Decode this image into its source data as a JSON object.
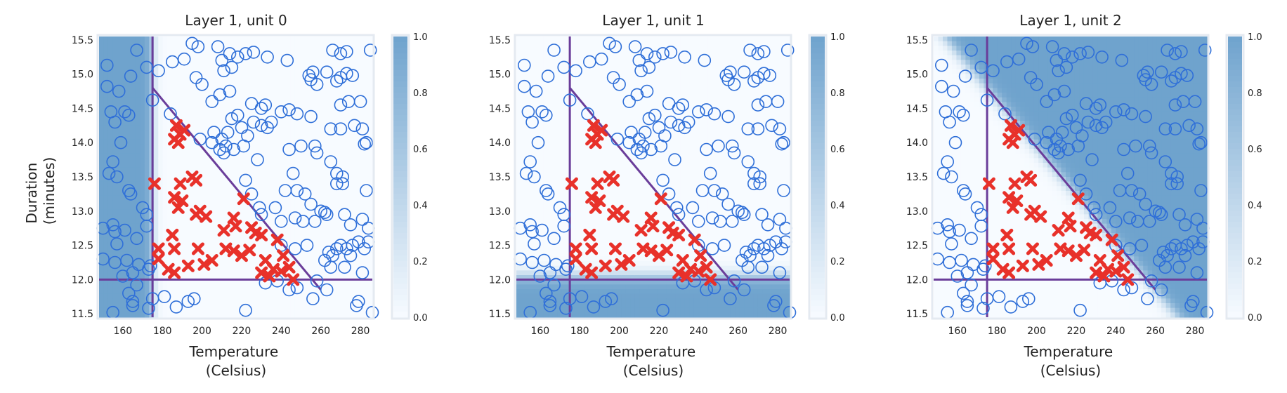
{
  "figure": {
    "xlabel_lines": [
      "Temperature",
      "(Celsius)"
    ],
    "ylabel_lines": [
      "Duration",
      "(minutes)"
    ],
    "colors": {
      "cmap_low": "#f7fbff",
      "cmap_high": "#6fa3cd",
      "circle": "#2f6fd8",
      "cross": "#e8312a",
      "boundary": "#6a3d9a",
      "frame": "#e4eaf1"
    },
    "icons": {
      "positive_marker": "cross-icon",
      "negative_marker": "circle-icon"
    }
  },
  "chart_data": [
    {
      "type": "heatmap",
      "title": "Layer 1, unit 0",
      "xlim": [
        148,
        286
      ],
      "ylim": [
        11.45,
        15.55
      ],
      "xticks": [
        160,
        180,
        200,
        220,
        240,
        260,
        280
      ],
      "yticks": [
        11.5,
        12.0,
        12.5,
        13.0,
        13.5,
        14.0,
        14.5,
        15.0,
        15.5
      ],
      "colorbar": {
        "ticks": [
          0.0,
          0.2,
          0.4,
          0.6,
          0.8,
          1.0
        ],
        "range": [
          0,
          1
        ]
      },
      "activation": {
        "rule": "temperature_below",
        "threshold": 175,
        "steepness": 0.8
      },
      "lines": [
        {
          "from": [
            148,
            12.0
          ],
          "to": [
            286,
            12.0
          ]
        },
        {
          "from": [
            175,
            11.45
          ],
          "to": [
            175,
            15.55
          ]
        },
        {
          "from": [
            175,
            14.8
          ],
          "to": [
            260,
            11.85
          ]
        }
      ]
    },
    {
      "type": "heatmap",
      "title": "Layer 1, unit 1",
      "xlim": [
        148,
        286
      ],
      "ylim": [
        11.45,
        15.55
      ],
      "xticks": [
        160,
        180,
        200,
        220,
        240,
        260,
        280
      ],
      "yticks": [
        11.5,
        12.0,
        12.5,
        13.0,
        13.5,
        14.0,
        14.5,
        15.0,
        15.5
      ],
      "colorbar": {
        "ticks": [
          0.0,
          0.2,
          0.4,
          0.6,
          0.8,
          1.0
        ],
        "range": [
          0,
          1
        ]
      },
      "activation": {
        "rule": "duration_below",
        "threshold": 12.05,
        "steepness": 18
      },
      "lines": [
        {
          "from": [
            148,
            12.0
          ],
          "to": [
            286,
            12.0
          ]
        },
        {
          "from": [
            175,
            11.45
          ],
          "to": [
            175,
            15.55
          ]
        },
        {
          "from": [
            175,
            14.8
          ],
          "to": [
            260,
            11.85
          ]
        }
      ]
    },
    {
      "type": "heatmap",
      "title": "Layer 1, unit 2",
      "xlim": [
        148,
        286
      ],
      "ylim": [
        11.45,
        15.55
      ],
      "xticks": [
        160,
        180,
        200,
        220,
        240,
        260,
        280
      ],
      "yticks": [
        11.5,
        12.0,
        12.5,
        13.0,
        13.5,
        14.0,
        14.5,
        15.0,
        15.5
      ],
      "colorbar": {
        "ticks": [
          0.0,
          0.2,
          0.4,
          0.6,
          0.8,
          1.0
        ],
        "range": [
          0,
          1
        ]
      },
      "activation": {
        "rule": "above_diagonal",
        "line_from": [
          175,
          14.8
        ],
        "line_to": [
          260,
          11.85
        ],
        "steepness": 0.45
      },
      "lines": [
        {
          "from": [
            148,
            12.0
          ],
          "to": [
            286,
            12.0
          ]
        },
        {
          "from": [
            175,
            11.45
          ],
          "to": [
            175,
            15.55
          ]
        },
        {
          "from": [
            175,
            14.8
          ],
          "to": [
            260,
            11.85
          ]
        }
      ]
    }
  ],
  "points": {
    "crosses": [
      [
        187,
        14.25
      ],
      [
        189,
        14.12
      ],
      [
        186,
        14.05
      ],
      [
        191,
        14.18
      ],
      [
        188,
        14.0
      ],
      [
        176,
        13.4
      ],
      [
        189,
        13.4
      ],
      [
        195,
        13.5
      ],
      [
        197,
        13.45
      ],
      [
        186,
        13.2
      ],
      [
        190,
        13.15
      ],
      [
        188,
        13.05
      ],
      [
        199,
        13.0
      ],
      [
        202,
        12.92
      ],
      [
        221,
        13.18
      ],
      [
        197,
        12.95
      ],
      [
        216,
        12.9
      ],
      [
        217,
        12.78
      ],
      [
        211,
        12.72
      ],
      [
        225,
        12.76
      ],
      [
        227,
        12.68
      ],
      [
        230,
        12.65
      ],
      [
        238,
        12.58
      ],
      [
        185,
        12.65
      ],
      [
        178,
        12.45
      ],
      [
        186,
        12.45
      ],
      [
        198,
        12.45
      ],
      [
        212,
        12.45
      ],
      [
        216,
        12.42
      ],
      [
        220,
        12.35
      ],
      [
        224,
        12.43
      ],
      [
        178,
        12.3
      ],
      [
        205,
        12.28
      ],
      [
        201,
        12.22
      ],
      [
        193,
        12.2
      ],
      [
        183,
        12.15
      ],
      [
        186,
        12.1
      ],
      [
        232,
        12.28
      ],
      [
        236,
        12.15
      ],
      [
        230,
        12.1
      ],
      [
        240,
        12.12
      ],
      [
        246,
        12.0
      ],
      [
        244,
        12.18
      ],
      [
        234,
        12.05
      ],
      [
        241,
        12.35
      ]
    ],
    "circles": [
      [
        152,
        15.13
      ],
      [
        152,
        14.82
      ],
      [
        154,
        14.45
      ],
      [
        158,
        14.75
      ],
      [
        164,
        14.97
      ],
      [
        167,
        15.35
      ],
      [
        172,
        15.1
      ],
      [
        175,
        14.62
      ],
      [
        156,
        14.3
      ],
      [
        161,
        14.45
      ],
      [
        163,
        14.4
      ],
      [
        159,
        14.0
      ],
      [
        155,
        13.72
      ],
      [
        153,
        13.55
      ],
      [
        157,
        13.5
      ],
      [
        163,
        13.3
      ],
      [
        164,
        13.25
      ],
      [
        170,
        13.05
      ],
      [
        172,
        12.95
      ],
      [
        172,
        12.78
      ],
      [
        155,
        12.8
      ],
      [
        150,
        12.75
      ],
      [
        156,
        12.7
      ],
      [
        161,
        12.72
      ],
      [
        167,
        12.6
      ],
      [
        157,
        12.52
      ],
      [
        150,
        12.3
      ],
      [
        156,
        12.25
      ],
      [
        162,
        12.28
      ],
      [
        168,
        12.22
      ],
      [
        174,
        12.2
      ],
      [
        173,
        12.15
      ],
      [
        165,
        12.1
      ],
      [
        160,
        12.05
      ],
      [
        167,
        11.92
      ],
      [
        163,
        11.8
      ],
      [
        165,
        11.68
      ],
      [
        173,
        11.58
      ],
      [
        155,
        11.52
      ],
      [
        165,
        11.62
      ],
      [
        175,
        11.72
      ],
      [
        181,
        11.75
      ],
      [
        187,
        11.6
      ],
      [
        196,
        11.72
      ],
      [
        193,
        11.68
      ],
      [
        222,
        11.55
      ],
      [
        256,
        11.72
      ],
      [
        263,
        11.85
      ],
      [
        278,
        11.62
      ],
      [
        279,
        11.68
      ],
      [
        286,
        11.52
      ],
      [
        248,
        11.88
      ],
      [
        258,
        11.98
      ],
      [
        244,
        11.85
      ],
      [
        238,
        11.98
      ],
      [
        232,
        11.95
      ],
      [
        178,
        15.05
      ],
      [
        185,
        15.18
      ],
      [
        191,
        15.22
      ],
      [
        195,
        15.45
      ],
      [
        198,
        15.4
      ],
      [
        208,
        15.4
      ],
      [
        214,
        15.3
      ],
      [
        210,
        15.2
      ],
      [
        218,
        15.25
      ],
      [
        222,
        15.3
      ],
      [
        226,
        15.32
      ],
      [
        233,
        15.25
      ],
      [
        243,
        15.2
      ],
      [
        256,
        15.03
      ],
      [
        263,
        15.03
      ],
      [
        266,
        15.35
      ],
      [
        270,
        15.3
      ],
      [
        273,
        15.33
      ],
      [
        285,
        15.35
      ],
      [
        197,
        14.95
      ],
      [
        200,
        14.85
      ],
      [
        211,
        15.05
      ],
      [
        215,
        15.1
      ],
      [
        254,
        14.98
      ],
      [
        255,
        14.92
      ],
      [
        258,
        14.85
      ],
      [
        268,
        14.9
      ],
      [
        270,
        14.95
      ],
      [
        273,
        15.01
      ],
      [
        276,
        14.98
      ],
      [
        184,
        14.42
      ],
      [
        205,
        14.6
      ],
      [
        209,
        14.7
      ],
      [
        214,
        14.75
      ],
      [
        225,
        14.57
      ],
      [
        230,
        14.5
      ],
      [
        232,
        14.55
      ],
      [
        240,
        14.45
      ],
      [
        244,
        14.48
      ],
      [
        248,
        14.42
      ],
      [
        255,
        14.38
      ],
      [
        270,
        14.55
      ],
      [
        274,
        14.6
      ],
      [
        280,
        14.6
      ],
      [
        215,
        14.35
      ],
      [
        218,
        14.4
      ],
      [
        220,
        14.22
      ],
      [
        223,
        14.1
      ],
      [
        226,
        14.3
      ],
      [
        230,
        14.25
      ],
      [
        233,
        14.22
      ],
      [
        235,
        14.3
      ],
      [
        265,
        14.2
      ],
      [
        270,
        14.2
      ],
      [
        277,
        14.25
      ],
      [
        281,
        14.2
      ],
      [
        206,
        14.15
      ],
      [
        210,
        14.05
      ],
      [
        213,
        14.15
      ],
      [
        212,
        13.95
      ],
      [
        216,
        13.9
      ],
      [
        221,
        13.95
      ],
      [
        199,
        14.05
      ],
      [
        205,
        14.0
      ],
      [
        209,
        13.9
      ],
      [
        211,
        13.85
      ],
      [
        228,
        13.75
      ],
      [
        244,
        13.9
      ],
      [
        250,
        13.95
      ],
      [
        257,
        13.95
      ],
      [
        258,
        13.85
      ],
      [
        265,
        13.72
      ],
      [
        268,
        13.55
      ],
      [
        271,
        13.5
      ],
      [
        282,
        13.98
      ],
      [
        283,
        14.0
      ],
      [
        268,
        13.4
      ],
      [
        271,
        13.4
      ],
      [
        283,
        13.3
      ],
      [
        225,
        13.25
      ],
      [
        229,
        13.05
      ],
      [
        237,
        13.05
      ],
      [
        242,
        13.3
      ],
      [
        248,
        13.3
      ],
      [
        252,
        13.25
      ],
      [
        255,
        13.1
      ],
      [
        260,
        13.0
      ],
      [
        262,
        12.98
      ],
      [
        263,
        12.95
      ],
      [
        230,
        12.95
      ],
      [
        240,
        12.85
      ],
      [
        247,
        12.9
      ],
      [
        251,
        12.85
      ],
      [
        272,
        12.95
      ],
      [
        275,
        12.8
      ],
      [
        281,
        12.88
      ],
      [
        284,
        12.75
      ],
      [
        222,
        13.45
      ],
      [
        246,
        13.55
      ],
      [
        257,
        12.85
      ],
      [
        273,
        12.45
      ],
      [
        276,
        12.5
      ],
      [
        279,
        12.55
      ],
      [
        282,
        12.45
      ],
      [
        284,
        12.55
      ],
      [
        268,
        12.45
      ],
      [
        270,
        12.5
      ],
      [
        264,
        12.4
      ],
      [
        266,
        12.35
      ],
      [
        275,
        12.35
      ],
      [
        281,
        12.1
      ],
      [
        253,
        12.5
      ],
      [
        247,
        12.45
      ],
      [
        240,
        12.5
      ],
      [
        265,
        12.18
      ],
      [
        272,
        12.18
      ],
      [
        262,
        12.28
      ]
    ]
  }
}
